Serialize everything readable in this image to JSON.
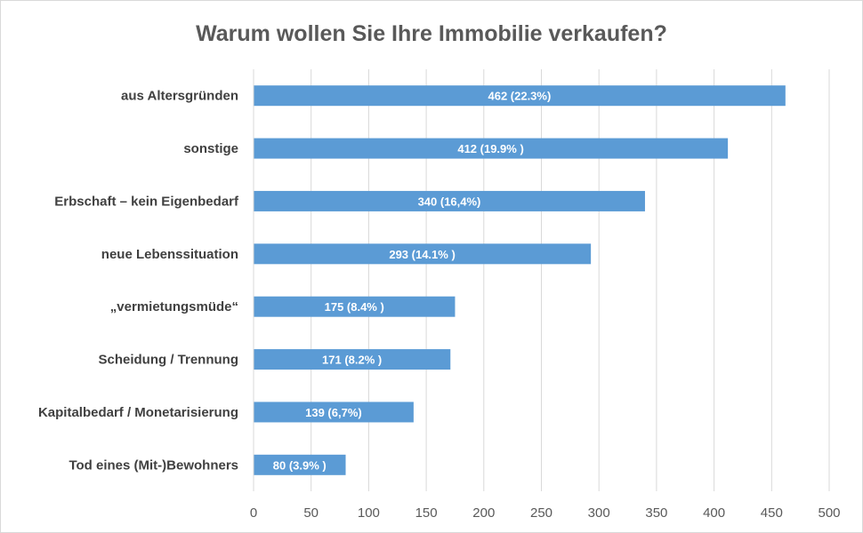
{
  "chart_data": {
    "type": "bar",
    "orientation": "horizontal",
    "title": "Warum wollen Sie Ihre Immobilie verkaufen?",
    "categories": [
      "aus Altersgründen",
      "sonstige",
      "Erbschaft – kein Eigenbedarf",
      "neue Lebenssituation",
      "„vermietungsmüde“",
      "Scheidung / Trennung",
      "Kapitalbedarf / Monetarisierung",
      "Tod eines (Mit-)Bewohners"
    ],
    "values": [
      462,
      412,
      340,
      293,
      175,
      171,
      139,
      80
    ],
    "data_labels": [
      "462 (22.3%)",
      "412 (19.9% )",
      "340 (16,4%)",
      "293 (14.1% )",
      "175 (8.4% )",
      "171 (8.2% )",
      "139 (6,7%)",
      "80 (3.9% )"
    ],
    "xlim": [
      0,
      500
    ],
    "xticks": [
      0,
      50,
      100,
      150,
      200,
      250,
      300,
      350,
      400,
      450,
      500
    ],
    "grid": true,
    "bar_color": "#5b9bd5",
    "grid_color": "#d9d9d9"
  }
}
